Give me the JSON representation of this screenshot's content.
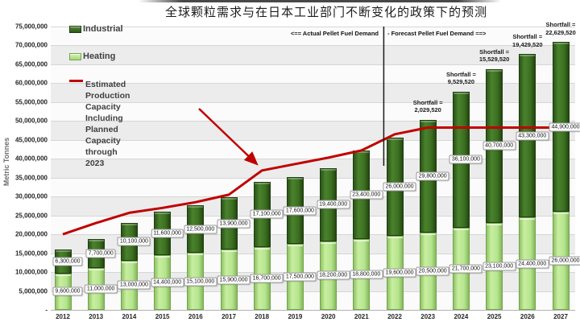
{
  "page": {
    "title": "全球颗粒需求与在日本工业部门不断变化的政策下的预测"
  },
  "legend": {
    "industrial_label": "Industrial",
    "heating_label": "Heating",
    "capacity_label_line1": "Estimated Production Capacity Including Planned",
    "capacity_label_line2": "Capacity through 2023"
  },
  "annotations": {
    "actual_side": "<== Actual Pellet Fuel Demand",
    "forecast_side": "- Forecast Pellet Fuel Demand ==>",
    "shortfall_prefix": "Shortfall ="
  },
  "axis": {
    "y_title": "Metric Tonnes",
    "zero_label": "-"
  },
  "chart_data": {
    "type": "bar",
    "subtype": "stacked-bars-with-capacity-line",
    "title": "全球颗粒需求与在日本工业部门不断变化的政策下的预测",
    "xlabel": "",
    "ylabel": "Metric Tonnes",
    "ylim": [
      0,
      75000000
    ],
    "ytick_interval": 5000000,
    "grid": true,
    "banded_background": true,
    "legend_position": "top-left-inside",
    "categories": [
      2012,
      2013,
      2014,
      2015,
      2016,
      2017,
      2018,
      2019,
      2020,
      2021,
      2022,
      2023,
      2024,
      2025,
      2026,
      2027
    ],
    "series": [
      {
        "name": "Heating",
        "type": "bar",
        "stack": "demand",
        "color": "#b6e58f",
        "values": [
          9600000,
          11000000,
          13000000,
          14400000,
          15100000,
          15900000,
          16700000,
          17500000,
          18200000,
          18800000,
          19600000,
          20500000,
          21700000,
          23100000,
          24400000,
          26000000
        ]
      },
      {
        "name": "Industrial",
        "type": "bar",
        "stack": "demand",
        "color": "#3c7022",
        "values": [
          6300000,
          7700000,
          10100000,
          11600000,
          12500000,
          13900000,
          17100000,
          17600000,
          19400000,
          23400000,
          26000000,
          29800000,
          36100000,
          40700000,
          43300000,
          44900000
        ]
      },
      {
        "name": "Estimated Production Capacity Including Planned Capacity through 2023",
        "type": "line",
        "color": "#c00000",
        "values": [
          20000000,
          23000000,
          25700000,
          27000000,
          28500000,
          30500000,
          36900000,
          38600000,
          40300000,
          42200000,
          46500000,
          48270480,
          48270480,
          48270480,
          48270480,
          48270480
        ]
      }
    ],
    "shortfalls": [
      {
        "year": 2023,
        "value": 2029520,
        "text": "2,029,520"
      },
      {
        "year": 2024,
        "value": 9529520,
        "text": "9,529,520"
      },
      {
        "year": 2025,
        "value": 15529520,
        "text": "15,529,520"
      },
      {
        "year": 2026,
        "value": 19429520,
        "text": "19,429,520"
      },
      {
        "year": 2027,
        "value": 22629520,
        "text": "22,629,520"
      }
    ],
    "actual_forecast_boundary_between": [
      2021,
      2022
    ]
  }
}
